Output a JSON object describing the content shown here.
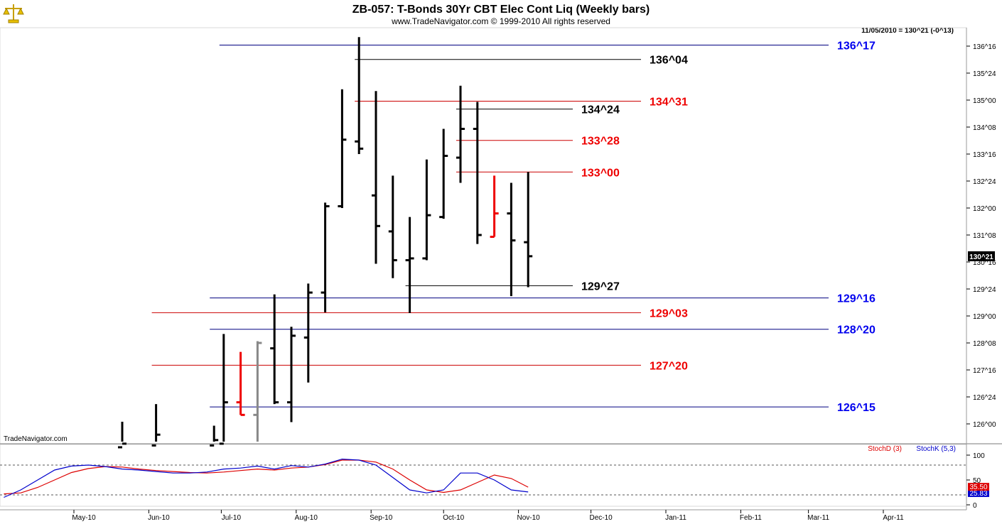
{
  "header": {
    "title": "ZB-057:  T-Bonds 30Yr CBT Elec Cont Liq  (Weekly bars)",
    "copyright": "www.TradeNavigator.com © 1999-2010 All rights reserved",
    "last_quote": "11/05/2010 = 130^21 (-0^13)",
    "watermark": "TradeNavigator.com",
    "logo_icon": "scale-icon"
  },
  "colors": {
    "bar_default": "#000000",
    "bar_red": "#ee0000",
    "bar_gray": "#888888",
    "level_blue": "#000080",
    "level_red": "#cc0000",
    "level_black": "#000000",
    "label_blue": "#0000ee",
    "label_red": "#ee0000",
    "stoch_d": "#dd0000",
    "stoch_k": "#0000cc"
  },
  "chart_data": [
    {
      "type": "ohlc",
      "price_unit": "32nds",
      "y_ticks": [
        "126^00",
        "126^24",
        "127^16",
        "128^08",
        "129^00",
        "129^24",
        "130^16",
        "131^08",
        "132^00",
        "132^24",
        "133^16",
        "134^08",
        "135^00",
        "135^24",
        "136^16"
      ],
      "y_tick_values": [
        126.0,
        126.75,
        127.5,
        128.25,
        129.0,
        129.75,
        130.5,
        131.25,
        132.0,
        132.75,
        133.5,
        134.25,
        135.0,
        135.75,
        136.5
      ],
      "current_price_label": "130^21",
      "current_price": 130.66,
      "x_ticks": [
        "May-10",
        "Jun-10",
        "Jul-10",
        "Aug-10",
        "Sep-10",
        "Oct-10",
        "Nov-10",
        "Dec-10",
        "Jan-11",
        "Feb-11",
        "Mar-11",
        "Apr-11"
      ],
      "bars": [
        {
          "date": "2010-05-21",
          "open": 125.35,
          "high": 126.06,
          "low": 125.35,
          "close": 125.45
        },
        {
          "date": "2010-06-04",
          "open": 125.4,
          "high": 126.55,
          "low": 125.35,
          "close": 125.7
        },
        {
          "date": "2010-06-28",
          "open": 125.4,
          "high": 125.95,
          "low": 125.35,
          "close": 125.55
        },
        {
          "date": "2010-07-02",
          "open": 125.45,
          "high": 128.5,
          "low": 125.45,
          "close": 126.6
        },
        {
          "date": "2010-07-09",
          "open": 126.6,
          "high": 128.0,
          "low": 126.25,
          "close": 126.25,
          "color": "red"
        },
        {
          "date": "2010-07-16",
          "open": 126.25,
          "high": 128.3,
          "low": 125.4,
          "close": 128.25,
          "color": "gray"
        },
        {
          "date": "2010-07-23",
          "open": 128.1,
          "high": 129.6,
          "low": 126.55,
          "close": 126.6
        },
        {
          "date": "2010-07-30",
          "open": 126.6,
          "high": 128.7,
          "low": 126.05,
          "close": 128.45
        },
        {
          "date": "2010-08-06",
          "open": 128.4,
          "high": 129.9,
          "low": 127.15,
          "close": 129.65
        },
        {
          "date": "2010-08-13",
          "open": 129.65,
          "high": 132.15,
          "low": 129.1,
          "close": 132.05
        },
        {
          "date": "2010-08-20",
          "open": 132.05,
          "high": 135.3,
          "low": 132.0,
          "close": 133.9
        },
        {
          "date": "2010-08-27",
          "open": 133.85,
          "high": 136.75,
          "low": 133.5,
          "close": 133.65
        },
        {
          "date": "2010-09-03",
          "open": 132.35,
          "high": 135.25,
          "low": 130.45,
          "close": 131.5
        },
        {
          "date": "2010-09-10",
          "open": 131.35,
          "high": 132.9,
          "low": 130.05,
          "close": 130.55
        },
        {
          "date": "2010-09-17",
          "open": 130.55,
          "high": 131.75,
          "low": 129.08,
          "close": 130.6
        },
        {
          "date": "2010-09-24",
          "open": 130.6,
          "high": 133.35,
          "low": 130.55,
          "close": 131.8
        },
        {
          "date": "2010-10-01",
          "open": 131.75,
          "high": 134.2,
          "low": 131.7,
          "close": 133.45
        },
        {
          "date": "2010-10-08",
          "open": 133.4,
          "high": 135.4,
          "low": 132.7,
          "close": 134.2
        },
        {
          "date": "2010-10-15",
          "open": 134.2,
          "high": 134.95,
          "low": 131.0,
          "close": 131.25
        },
        {
          "date": "2010-10-22",
          "open": 131.2,
          "high": 132.9,
          "low": 131.2,
          "close": 131.85,
          "color": "red"
        },
        {
          "date": "2010-10-29",
          "open": 131.85,
          "high": 132.7,
          "low": 129.55,
          "close": 131.1
        },
        {
          "date": "2010-11-05",
          "open": 131.05,
          "high": 133.0,
          "low": 129.8,
          "close": 130.66
        }
      ],
      "levels": [
        {
          "label": "136^17",
          "value": 136.53,
          "color": "blue",
          "x_from": "2010-07-02"
        },
        {
          "label": "136^04",
          "value": 136.13,
          "color": "black",
          "x_from": "2010-08-27"
        },
        {
          "label": "134^31",
          "value": 134.97,
          "color": "red",
          "x_from": "2010-08-27"
        },
        {
          "label": "134^24",
          "value": 134.75,
          "color": "black",
          "x_from": "2010-10-08"
        },
        {
          "label": "133^28",
          "value": 133.88,
          "color": "red",
          "x_from": "2010-10-08"
        },
        {
          "label": "133^00",
          "value": 133.0,
          "color": "red",
          "x_from": "2010-10-08"
        },
        {
          "label": "129^27",
          "value": 129.84,
          "color": "black",
          "x_from": "2010-09-17"
        },
        {
          "label": "129^16",
          "value": 129.5,
          "color": "blue",
          "x_from": "2010-06-28"
        },
        {
          "label": "129^03",
          "value": 129.09,
          "color": "red",
          "x_from": "2010-06-04"
        },
        {
          "label": "128^20",
          "value": 128.63,
          "color": "blue",
          "x_from": "2010-06-28"
        },
        {
          "label": "127^20",
          "value": 127.63,
          "color": "red",
          "x_from": "2010-06-04"
        },
        {
          "label": "126^15",
          "value": 126.47,
          "color": "blue",
          "x_from": "2010-06-28"
        }
      ]
    },
    {
      "type": "line",
      "title": "",
      "legend": [
        "StochD (3)",
        "StochK (5,3)"
      ],
      "y_ticks": [
        0,
        50,
        100
      ],
      "reference_lines": [
        20,
        80
      ],
      "value_labels": [
        "35.50",
        "25.83"
      ],
      "x": [
        "2010-04-02",
        "2010-04-09",
        "2010-04-16",
        "2010-04-23",
        "2010-04-30",
        "2010-05-07",
        "2010-05-14",
        "2010-05-21",
        "2010-05-28",
        "2010-06-04",
        "2010-06-11",
        "2010-06-18",
        "2010-06-25",
        "2010-07-02",
        "2010-07-09",
        "2010-07-16",
        "2010-07-23",
        "2010-07-30",
        "2010-08-06",
        "2010-08-13",
        "2010-08-20",
        "2010-08-27",
        "2010-09-03",
        "2010-09-10",
        "2010-09-17",
        "2010-09-24",
        "2010-10-01",
        "2010-10-08",
        "2010-10-15",
        "2010-10-22",
        "2010-10-29",
        "2010-11-05"
      ],
      "series": [
        {
          "name": "StochD (3)",
          "values": [
            22,
            24,
            35,
            50,
            65,
            73,
            77,
            76,
            72,
            69,
            67,
            65,
            64,
            66,
            69,
            72,
            70,
            74,
            76,
            81,
            90,
            90,
            86,
            72,
            50,
            30,
            25,
            30,
            45,
            60,
            53,
            35.5
          ]
        },
        {
          "name": "StochK (5,3)",
          "values": [
            15,
            30,
            50,
            70,
            78,
            80,
            77,
            72,
            70,
            67,
            64,
            64,
            66,
            72,
            74,
            78,
            72,
            79,
            76,
            82,
            92,
            90,
            80,
            55,
            30,
            24,
            30,
            64,
            64,
            50,
            30,
            25.83
          ]
        }
      ]
    }
  ]
}
